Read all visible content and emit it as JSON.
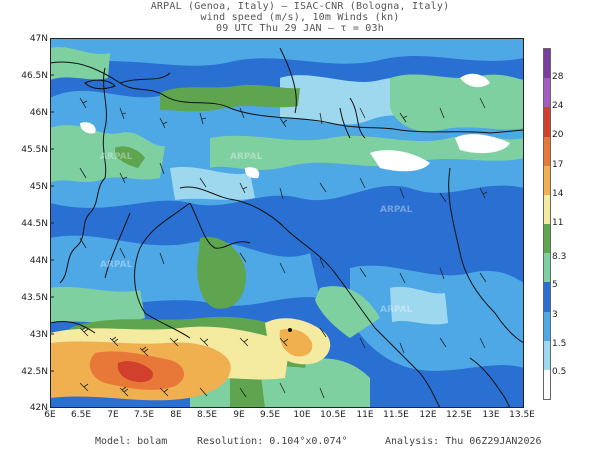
{
  "header": {
    "line1": "ARPAL (Genoa, Italy)  —  ISAC-CNR (Bologna, Italy)",
    "line2": "wind speed (m/s), 10m Winds (kn)",
    "line3": "09 UTC Thu 29 JAN  —  τ = 03h"
  },
  "map": {
    "lat_labels": [
      "47N",
      "46.5N",
      "46N",
      "45.5N",
      "45N",
      "44.5N",
      "44N",
      "43.5N",
      "43N",
      "42.5N",
      "42N"
    ],
    "lon_labels": [
      "6E",
      "6.5E",
      "7E",
      "7.5E",
      "8E",
      "8.5E",
      "9E",
      "9.5E",
      "10E",
      "10.5E",
      "11E",
      "11.5E",
      "12E",
      "12.5E",
      "13E",
      "13.5E"
    ],
    "watermark": "ARPAL",
    "field_colors": {
      "band_0_0.5": "#ffffff",
      "band_0.5_1.5": "#9ed8ef",
      "band_1.5_3": "#4ea8e6",
      "band_3_5": "#2a6fd2",
      "band_5_8.3": "#7fd0a0",
      "band_8.3_11": "#5fa44f",
      "band_11_14": "#f4eaa0",
      "band_14_17": "#f0b050",
      "band_17_20": "#e87838",
      "band_20_24": "#d0402c"
    }
  },
  "colorbar": {
    "labels": [
      "28",
      "24",
      "20",
      "17",
      "14",
      "11",
      "8.3",
      "5",
      "3",
      "1.5",
      "0.5"
    ],
    "colors": [
      "#7a3ea0",
      "#a15ec0",
      "#d0402c",
      "#e87838",
      "#f0b050",
      "#f4eaa0",
      "#5fa44f",
      "#7fd0a0",
      "#2a6fd2",
      "#4ea8e6",
      "#9ed8ef",
      "#ffffff"
    ]
  },
  "footer": {
    "model": "Model: bolam",
    "resolution": "Resolution: 0.104°x0.074°",
    "analysis": "Analysis: Thu 06Z29JAN2026"
  }
}
